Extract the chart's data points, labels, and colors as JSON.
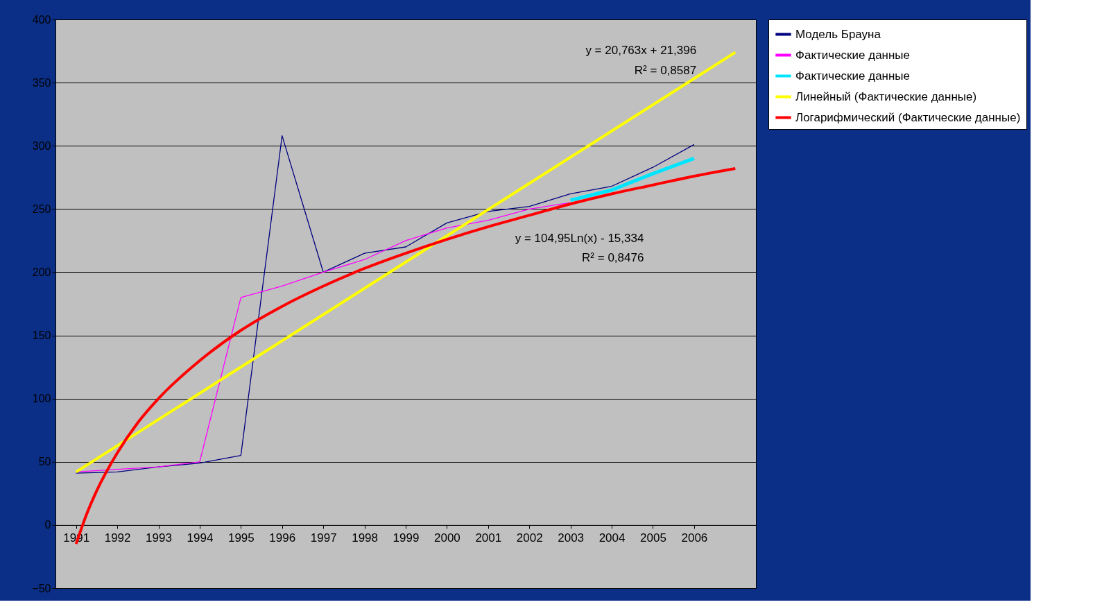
{
  "chart_data": {
    "type": "line",
    "x": [
      1991,
      1992,
      1993,
      1994,
      1995,
      1996,
      1997,
      1998,
      1999,
      2000,
      2001,
      2002,
      2003,
      2004,
      2005,
      2006
    ],
    "series": [
      {
        "name": "Модель Брауна",
        "color": "#000080",
        "values": [
          41,
          42,
          46,
          49,
          55,
          308,
          200,
          215,
          220,
          239,
          248,
          252,
          262,
          268,
          283,
          301
        ]
      },
      {
        "name": "Фактические данные",
        "color": "#ff00ff",
        "values": [
          42,
          44,
          46,
          50,
          180,
          189,
          200,
          210,
          225,
          235,
          241,
          250,
          255,
          null,
          null,
          null
        ]
      },
      {
        "name": "Фактические данные",
        "color": "#00e5ff",
        "values": [
          null,
          null,
          null,
          null,
          null,
          null,
          null,
          null,
          null,
          null,
          null,
          null,
          257,
          265,
          278,
          290
        ]
      },
      {
        "name": "Линейный (Фактические данные)",
        "color": "#ffff00",
        "x": [
          1991,
          2007
        ],
        "values": [
          42,
          374
        ]
      },
      {
        "name": "Логарифмический (Фактические данные)",
        "color": "#ff0000",
        "x": [
          1991,
          1991.25,
          1991.5,
          1992,
          1992.5,
          1993,
          1994,
          1995,
          1996,
          1997,
          1998,
          1999,
          2000,
          2001,
          2002,
          2003,
          2004,
          2005,
          2006,
          2007
        ],
        "values": [
          -15,
          8,
          27,
          57,
          81,
          100,
          130,
          154,
          173,
          189,
          203,
          215,
          226,
          236,
          245,
          254,
          262,
          269,
          276,
          282
        ]
      }
    ],
    "annotations": [
      "y = 20,763x + 21,396",
      "R² = 0,8587",
      "y = 104,95Ln(x) - 15,334",
      "R² = 0,8476"
    ],
    "xlim": [
      1990.5,
      2007.5
    ],
    "xticks": [
      1991,
      1992,
      1993,
      1994,
      1995,
      1996,
      1997,
      1998,
      1999,
      2000,
      2001,
      2002,
      2003,
      2004,
      2005,
      2006
    ],
    "ylim": [
      -50,
      400
    ],
    "yticks": [
      -50,
      0,
      50,
      100,
      150,
      200,
      250,
      300,
      350,
      400
    ],
    "grid": "y",
    "legend": "right",
    "marker": "none",
    "line_style": "solid"
  }
}
